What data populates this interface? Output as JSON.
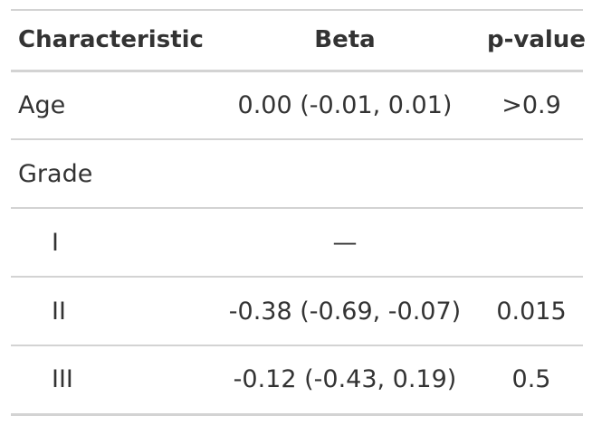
{
  "table": {
    "headers": {
      "characteristic": "Characteristic",
      "beta": "Beta",
      "p_value": "p-value"
    },
    "rows": [
      {
        "label": "Age",
        "beta": "0.00 (-0.01, 0.01)",
        "p_value": ">0.9"
      },
      {
        "label": "Grade",
        "beta": "",
        "p_value": ""
      },
      {
        "label": "I",
        "beta": "—",
        "p_value": ""
      },
      {
        "label": "II",
        "beta": "-0.38 (-0.69, -0.07)",
        "p_value": "0.015"
      },
      {
        "label": "III",
        "beta": "-0.12 (-0.43, 0.19)",
        "p_value": "0.5"
      }
    ]
  }
}
